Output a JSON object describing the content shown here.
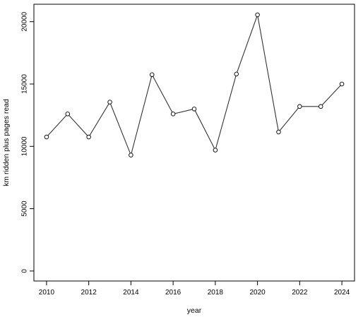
{
  "chart_data": {
    "type": "line",
    "title": "",
    "xlabel": "year",
    "ylabel": "km ridden plus pages read",
    "x": [
      2010,
      2011,
      2012,
      2013,
      2014,
      2015,
      2016,
      2017,
      2018,
      2019,
      2020,
      2021,
      2022,
      2023,
      2024
    ],
    "series": [
      {
        "values": [
          10750,
          12600,
          10750,
          13550,
          9300,
          15750,
          12600,
          13000,
          9700,
          15800,
          20550,
          11150,
          13200,
          13200,
          15000
        ]
      }
    ],
    "xlim": [
      2009.4,
      2024.6
    ],
    "ylim": [
      -800,
      21400
    ],
    "x_ticks": [
      2010,
      2012,
      2014,
      2016,
      2018,
      2020,
      2022,
      2024
    ],
    "y_ticks": [
      0,
      5000,
      10000,
      15000,
      20000
    ],
    "x_tick_labels": [
      "2010",
      "2012",
      "2014",
      "2016",
      "2018",
      "2020",
      "2022",
      "2024"
    ],
    "y_tick_labels": [
      "0",
      "5000",
      "10000",
      "15000",
      "20000"
    ],
    "marker": "open-circle",
    "grid": false,
    "line_color": "#333333",
    "point_color": "#000000",
    "frame_color": "#000000"
  }
}
